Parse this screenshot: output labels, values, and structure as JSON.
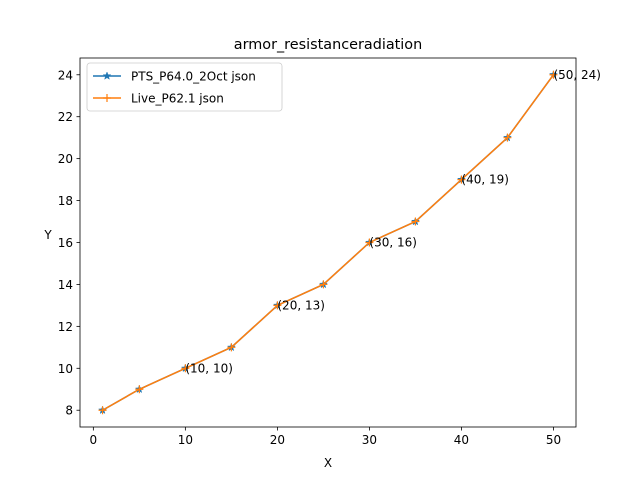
{
  "chart_data": {
    "type": "line",
    "title": "armor_resistanceradiation",
    "xlabel": "X",
    "ylabel": "Y",
    "xlim": [
      -1.45,
      52.45
    ],
    "ylim": [
      7.2,
      24.8
    ],
    "xticks": [
      0,
      10,
      20,
      30,
      40,
      50
    ],
    "yticks": [
      8,
      10,
      12,
      14,
      16,
      18,
      20,
      22,
      24
    ],
    "grid": false,
    "legend_position": "upper left",
    "x": [
      1,
      5,
      10,
      15,
      20,
      25,
      30,
      35,
      40,
      45,
      50
    ],
    "series": [
      {
        "name": "PTS_P64.0_2Oct json",
        "values": [
          8,
          9,
          10,
          11,
          13,
          14,
          16,
          17,
          19,
          21,
          24
        ],
        "color": "#1f77b4",
        "marker": "star"
      },
      {
        "name": "Live_P62.1 json",
        "values": [
          8,
          9,
          10,
          11,
          13,
          14,
          16,
          17,
          19,
          21,
          24
        ],
        "color": "#ff7f0e",
        "marker": "plus"
      }
    ],
    "annotations": [
      {
        "x": 10,
        "y": 10,
        "text": "(10, 10)"
      },
      {
        "x": 20,
        "y": 13,
        "text": "(20, 13)"
      },
      {
        "x": 30,
        "y": 16,
        "text": "(30, 16)"
      },
      {
        "x": 40,
        "y": 19,
        "text": "(40, 19)"
      },
      {
        "x": 50,
        "y": 24,
        "text": "(50, 24)"
      }
    ]
  }
}
